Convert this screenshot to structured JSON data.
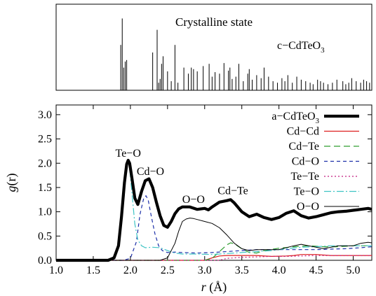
{
  "top_panel": {
    "title": "Crystalline state",
    "formula_prefix": "c−CdTeO",
    "formula_sub": "3"
  },
  "chart_data": {
    "type": "line",
    "xlabel_var": "r",
    "xlabel_unit": " (Å)",
    "ylabel_var": "g",
    "ylabel_arg": "(r)",
    "xlim": [
      1.0,
      5.25
    ],
    "ylim": [
      0.0,
      3.2
    ],
    "xticks": [
      1.0,
      1.5,
      2.0,
      2.5,
      3.0,
      3.5,
      4.0,
      4.5,
      5.0
    ],
    "xtick_labels": [
      "1.0",
      "1.5",
      "2.0",
      "2.5",
      "3.0",
      "3.5",
      "4.0",
      "4.5",
      "5.0"
    ],
    "yticks": [
      0.0,
      0.5,
      1.0,
      1.5,
      2.0,
      2.5,
      3.0
    ],
    "ytick_labels": [
      "0.0",
      "0.5",
      "1.0",
      "1.5",
      "2.0",
      "2.5",
      "3.0"
    ],
    "annotations": [
      {
        "text": "Te−O",
        "x": 1.97,
        "y": 2.13
      },
      {
        "text": "Cd−O",
        "x": 2.27,
        "y": 1.76
      },
      {
        "text": "O−O",
        "x": 2.85,
        "y": 1.18
      },
      {
        "text": "Cd−Te",
        "x": 3.38,
        "y": 1.36
      }
    ],
    "legend_position": "top-right",
    "series": [
      {
        "name": "a−CdTeO",
        "name_sub": "3",
        "color": "#000000",
        "width": 4.2,
        "dash": "",
        "x": [
          1.0,
          1.7,
          1.78,
          1.84,
          1.88,
          1.92,
          1.95,
          1.97,
          1.99,
          2.02,
          2.06,
          2.1,
          2.15,
          2.2,
          2.25,
          2.3,
          2.35,
          2.4,
          2.45,
          2.5,
          2.55,
          2.6,
          2.65,
          2.7,
          2.8,
          2.9,
          3.0,
          3.05,
          3.1,
          3.2,
          3.3,
          3.35,
          3.4,
          3.5,
          3.6,
          3.7,
          3.8,
          3.9,
          4.0,
          4.1,
          4.2,
          4.3,
          4.4,
          4.5,
          4.6,
          4.7,
          4.8,
          4.9,
          5.0,
          5.1,
          5.2,
          5.25
        ],
        "y": [
          0.0,
          0.0,
          0.05,
          0.3,
          0.9,
          1.6,
          1.98,
          2.06,
          2.0,
          1.7,
          1.28,
          1.15,
          1.42,
          1.64,
          1.68,
          1.5,
          1.2,
          0.92,
          0.72,
          0.68,
          0.8,
          0.96,
          1.06,
          1.1,
          1.1,
          1.05,
          1.07,
          1.04,
          1.1,
          1.2,
          1.23,
          1.25,
          1.18,
          1.0,
          0.9,
          0.95,
          0.88,
          0.84,
          0.88,
          0.97,
          1.02,
          0.92,
          0.87,
          0.9,
          0.94,
          0.98,
          1.0,
          1.01,
          1.03,
          1.05,
          1.07,
          1.05
        ]
      },
      {
        "name": "Cd−Cd",
        "color": "#dd1f1f",
        "width": 1.2,
        "dash": "",
        "x": [
          1.0,
          2.0,
          3.0,
          3.1,
          3.2,
          3.3,
          3.5,
          3.7,
          3.9,
          4.1,
          4.2,
          4.3,
          4.5,
          4.7,
          4.9,
          5.1,
          5.25
        ],
        "y": [
          0.0,
          0.0,
          0.0,
          0.05,
          0.09,
          0.1,
          0.1,
          0.1,
          0.08,
          0.09,
          0.1,
          0.12,
          0.12,
          0.1,
          0.1,
          0.1,
          0.1
        ]
      },
      {
        "name": "Cd−Te",
        "color": "#2f9e2f",
        "width": 1.2,
        "dash": "9,5",
        "x": [
          1.0,
          3.0,
          3.1,
          3.2,
          3.3,
          3.35,
          3.4,
          3.5,
          3.6,
          3.7,
          3.8,
          4.0,
          4.2,
          4.4,
          4.6,
          4.8,
          5.0,
          5.2,
          5.25
        ],
        "y": [
          0.0,
          0.0,
          0.04,
          0.18,
          0.32,
          0.36,
          0.34,
          0.24,
          0.16,
          0.15,
          0.2,
          0.25,
          0.28,
          0.3,
          0.28,
          0.28,
          0.3,
          0.3,
          0.3
        ]
      },
      {
        "name": "Cd−O",
        "color": "#1c2fa8",
        "width": 1.2,
        "dash": "5,4",
        "x": [
          1.0,
          1.9,
          2.0,
          2.08,
          2.13,
          2.18,
          2.21,
          2.24,
          2.28,
          2.33,
          2.38,
          2.43,
          2.5,
          2.6,
          2.7,
          2.9,
          3.1,
          3.3,
          3.5,
          3.7,
          3.9,
          4.1,
          4.3,
          4.5,
          4.7,
          4.9,
          5.1,
          5.25
        ],
        "y": [
          0.0,
          0.0,
          0.04,
          0.38,
          0.95,
          1.28,
          1.33,
          1.24,
          0.92,
          0.55,
          0.3,
          0.2,
          0.16,
          0.17,
          0.16,
          0.15,
          0.16,
          0.18,
          0.2,
          0.22,
          0.22,
          0.22,
          0.22,
          0.22,
          0.23,
          0.24,
          0.26,
          0.28
        ]
      },
      {
        "name": "Te−Te",
        "color": "#c21a7e",
        "width": 1.2,
        "dash": "2,3",
        "x": [
          1.0,
          3.2,
          3.3,
          3.5,
          3.7,
          3.9,
          4.1,
          4.3,
          4.5,
          4.7,
          4.9,
          5.1,
          5.25
        ],
        "y": [
          0.0,
          0.0,
          0.04,
          0.06,
          0.07,
          0.08,
          0.08,
          0.09,
          0.1,
          0.1,
          0.1,
          0.1,
          0.1
        ]
      },
      {
        "name": "Te−O",
        "color": "#3ec4c4",
        "width": 1.2,
        "dash": "10,3,2,3",
        "x": [
          1.0,
          1.7,
          1.78,
          1.84,
          1.88,
          1.92,
          1.95,
          1.97,
          1.99,
          2.02,
          2.06,
          2.1,
          2.15,
          2.2,
          2.3,
          2.4,
          2.5,
          2.6,
          2.7,
          2.9,
          3.1,
          3.3,
          3.5,
          3.7,
          3.9,
          4.1,
          4.3,
          4.5,
          4.7,
          4.9,
          5.1,
          5.25
        ],
        "y": [
          0.0,
          0.0,
          0.05,
          0.3,
          0.9,
          1.6,
          1.96,
          2.02,
          1.9,
          1.4,
          0.75,
          0.42,
          0.3,
          0.26,
          0.27,
          0.26,
          0.2,
          0.15,
          0.13,
          0.13,
          0.12,
          0.14,
          0.16,
          0.18,
          0.2,
          0.24,
          0.27,
          0.28,
          0.3,
          0.3,
          0.3,
          0.3
        ]
      },
      {
        "name": "O−O",
        "color": "#000000",
        "width": 1.0,
        "dash": "",
        "x": [
          1.0,
          2.4,
          2.5,
          2.6,
          2.65,
          2.7,
          2.75,
          2.8,
          2.85,
          2.9,
          3.0,
          3.1,
          3.2,
          3.3,
          3.4,
          3.5,
          3.6,
          3.7,
          3.8,
          4.0,
          4.2,
          4.3,
          4.4,
          4.6,
          4.8,
          5.0,
          5.1,
          5.2,
          5.25
        ],
        "y": [
          0.0,
          0.0,
          0.05,
          0.35,
          0.6,
          0.8,
          0.85,
          0.87,
          0.86,
          0.84,
          0.8,
          0.76,
          0.67,
          0.52,
          0.35,
          0.24,
          0.2,
          0.22,
          0.22,
          0.22,
          0.3,
          0.33,
          0.3,
          0.24,
          0.3,
          0.3,
          0.35,
          0.37,
          0.36
        ]
      }
    ],
    "stick_spectrum": {
      "positions": [
        1.87,
        1.89,
        1.91,
        1.93,
        1.95,
        2.3,
        2.36,
        2.38,
        2.4,
        2.42,
        2.44,
        2.5,
        2.55,
        2.6,
        2.64,
        2.72,
        2.78,
        2.82,
        2.85,
        2.9,
        2.98,
        3.06,
        3.1,
        3.14,
        3.2,
        3.26,
        3.32,
        3.34,
        3.37,
        3.42,
        3.46,
        3.52,
        3.58,
        3.6,
        3.64,
        3.7,
        3.76,
        3.8,
        3.86,
        3.92,
        3.98,
        4.04,
        4.08,
        4.12,
        4.18,
        4.24,
        4.3,
        4.36,
        4.42,
        4.46,
        4.52,
        4.56,
        4.6,
        4.66,
        4.72,
        4.78,
        4.86,
        4.9,
        4.94,
        4.98,
        5.04,
        5.1,
        5.14,
        5.18,
        5.22
      ],
      "heights": [
        0.6,
        0.95,
        0.3,
        0.38,
        0.4,
        0.5,
        0.8,
        0.1,
        0.15,
        0.35,
        0.45,
        0.25,
        0.12,
        0.6,
        0.1,
        0.3,
        0.22,
        0.3,
        0.28,
        0.25,
        0.32,
        0.35,
        0.18,
        0.24,
        0.22,
        0.36,
        0.26,
        0.3,
        0.15,
        0.18,
        0.35,
        0.12,
        0.22,
        0.28,
        0.14,
        0.2,
        0.16,
        0.3,
        0.18,
        0.12,
        0.1,
        0.16,
        0.12,
        0.2,
        0.1,
        0.18,
        0.14,
        0.12,
        0.1,
        0.08,
        0.14,
        0.12,
        0.1,
        0.08,
        0.1,
        0.14,
        0.12,
        0.08,
        0.1,
        0.16,
        0.12,
        0.1,
        0.14,
        0.12,
        0.1
      ]
    }
  }
}
